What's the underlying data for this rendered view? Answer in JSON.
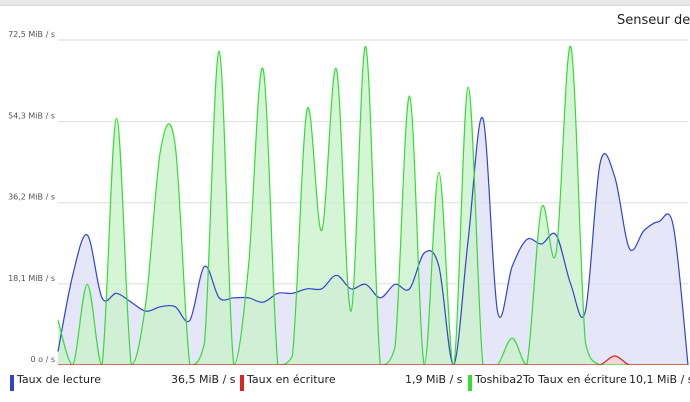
{
  "panel": {
    "title": "Senseur de su"
  },
  "chart_data": {
    "type": "area",
    "title": "Senseur de su",
    "ylim": [
      0,
      72.5
    ],
    "yticks": [
      {
        "value": 0,
        "label": "0 o / s"
      },
      {
        "value": 18.1,
        "label": "18,1 MiB / s"
      },
      {
        "value": 36.2,
        "label": "36,2 MiB / s"
      },
      {
        "value": 54.3,
        "label": "54,3 MiB / s"
      },
      {
        "value": 72.5,
        "label": "72,5 MiB / s"
      }
    ],
    "grid": true,
    "legend": "bottom",
    "series": [
      {
        "name": "Taux de lecture",
        "current": "36,5 MiB / s",
        "color": "#3344cc",
        "fill": "#dcdff6",
        "values": [
          3,
          20,
          29,
          15,
          16,
          14,
          12,
          13,
          13,
          10,
          22,
          15,
          15,
          15,
          14,
          16,
          16,
          17,
          17,
          20,
          17,
          18,
          15,
          18,
          17,
          25,
          22,
          0,
          28,
          55,
          12,
          22,
          28,
          27,
          29,
          18,
          12,
          45,
          42,
          26,
          30,
          32,
          31,
          0
        ]
      },
      {
        "name": "Taux en écriture",
        "current": "1,9 MiB / s",
        "color": "#dd2222",
        "fill": "#f6d0d0",
        "values": [
          0,
          0,
          0,
          0,
          0,
          0,
          0,
          0,
          0,
          0,
          0,
          0,
          0,
          0,
          0,
          0,
          0,
          0,
          0,
          0,
          0,
          0,
          0,
          0,
          0,
          0,
          0,
          0,
          0,
          0,
          0,
          0,
          0,
          0,
          0,
          0,
          0,
          0,
          2,
          0,
          0,
          0,
          0,
          0
        ]
      },
      {
        "name": "Toshiba2To Taux en écriture",
        "current": "10,1 MiB / s",
        "color": "#33dd33",
        "fill": "#c8f2c8",
        "values": [
          10,
          0,
          18,
          0,
          55,
          0,
          14,
          48,
          49,
          0,
          5,
          70,
          0,
          22,
          66,
          0,
          2,
          57,
          30,
          66,
          12,
          71,
          0,
          4,
          60,
          0,
          43,
          0,
          62,
          0,
          0,
          6,
          0,
          35,
          25,
          71,
          5,
          0,
          0,
          0,
          0,
          0,
          0,
          0
        ]
      }
    ]
  },
  "legend": {
    "items": [
      {
        "label": "Taux de lecture",
        "value": "36,5 MiB / s",
        "color": "#3344cc"
      },
      {
        "label": "Taux en écriture",
        "value": "1,9 MiB / s",
        "color": "#dd2222"
      },
      {
        "label": "Toshiba2To Taux en écriture",
        "value": "10,1 MiB / s",
        "color": "#33dd33"
      }
    ]
  }
}
